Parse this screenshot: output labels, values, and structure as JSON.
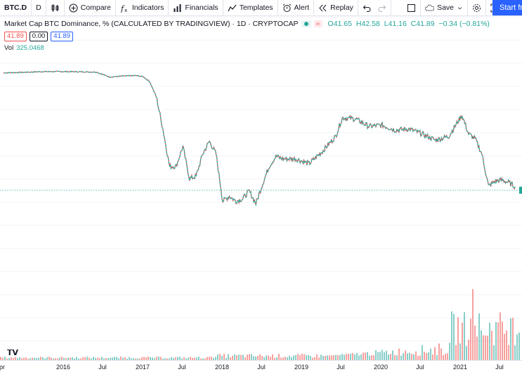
{
  "toolbar": {
    "symbol": "BTC.D",
    "interval": "D",
    "compare": "Compare",
    "indicators": "Indicators",
    "financials": "Financials",
    "templates": "Templates",
    "alert": "Alert",
    "replay": "Replay",
    "save": "Save",
    "start": "Start fr"
  },
  "legend": {
    "title": "Market Cap BTC Dominance, % (CALCULATED BY TRADINGVIEW) · 1D · CRYPTOCAP",
    "open": "O41.65",
    "high": "H42.58",
    "low": "L41.16",
    "close": "C41.89",
    "change": "−0.34 (−0.81%)",
    "bid": "41.89",
    "spread": "0.00",
    "ask": "41.89",
    "vol_label": "Vol",
    "vol_value": "325.0468"
  },
  "colors": {
    "up": "#26a69a",
    "down": "#ef5350",
    "accent": "#2962ff"
  },
  "chart_data": {
    "type": "line",
    "series": [
      {
        "x": [
          "2015-04",
          "2015-07",
          "2015-10",
          "2016-01",
          "2016-04",
          "2016-06",
          "2016-08",
          "2016-10",
          "2016-12",
          "2017-01",
          "2017-02",
          "2017-03",
          "2017-04",
          "2017-05",
          "2017-06",
          "2017-07",
          "2017-08",
          "2017-09",
          "2017-10",
          "2017-11",
          "2017-12",
          "2018-01",
          "2018-02",
          "2018-03",
          "2018-04",
          "2018-05",
          "2018-06",
          "2018-07",
          "2018-08",
          "2018-09",
          "2018-10",
          "2018-11",
          "2018-12",
          "2019-01",
          "2019-02",
          "2019-04",
          "2019-06",
          "2019-07",
          "2019-09",
          "2019-11",
          "2020-01",
          "2020-03",
          "2020-05",
          "2020-07",
          "2020-09",
          "2020-11",
          "2021-01",
          "2021-02",
          "2021-03",
          "2021-04",
          "2021-05",
          "2021-06",
          "2021-07",
          "2021-08",
          "2021-09"
        ],
        "values": [
          87.5,
          87.7,
          88.0,
          88.0,
          87.9,
          87.8,
          85.8,
          86.2,
          86.4,
          86.0,
          84.0,
          78.0,
          65.0,
          50.0,
          50.0,
          58.0,
          45.0,
          46.0,
          55.0,
          60.0,
          55.0,
          36.0,
          38.0,
          36.0,
          37.0,
          40.0,
          35.0,
          43.0,
          50.0,
          54.0,
          53.0,
          53.0,
          53.0,
          52.0,
          51.0,
          56.0,
          62.0,
          69.5,
          69.0,
          66.0,
          66.5,
          64.5,
          65.0,
          63.0,
          60.5,
          62.0,
          70.5,
          63.0,
          61.0,
          55.0,
          42.0,
          44.0,
          44.5,
          43.5,
          41.89
        ]
      }
    ],
    "volume_trend": "low until mid-2019, rising sharply through 2021"
  },
  "xaxis": {
    "ticks": [
      "pr",
      "2016",
      "Jul",
      "2017",
      "Jul",
      "2018",
      "Jul",
      "2019",
      "Jul",
      "2020",
      "Jul",
      "2021",
      "Jul"
    ]
  }
}
